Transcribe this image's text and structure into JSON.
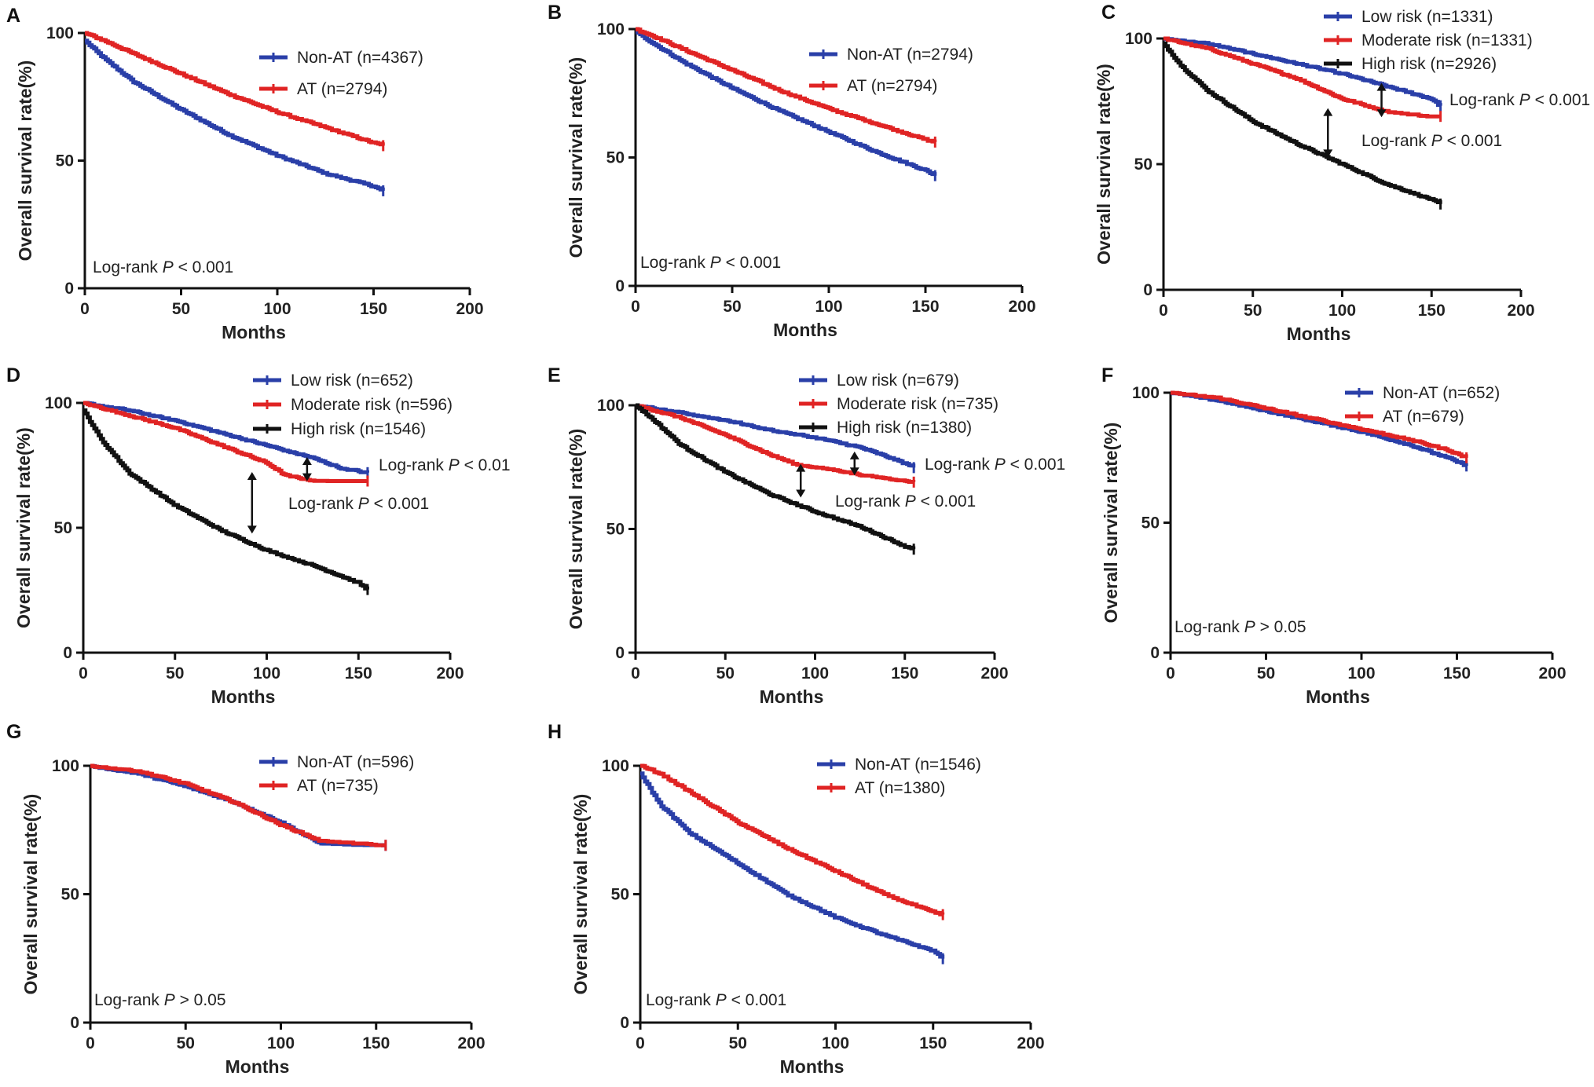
{
  "chart_data": [
    {
      "label": "A",
      "type": "line",
      "xlabel": "Months",
      "ylabel": "Overall survival rate(%)",
      "xlim": [
        0,
        200
      ],
      "ylim": [
        0,
        100
      ],
      "xticks": [
        0,
        50,
        100,
        150,
        200
      ],
      "yticks": [
        0,
        50,
        100
      ],
      "series": [
        {
          "name": "Non-AT (n=4367)",
          "color": "#2a3fa8",
          "x": [
            0,
            10,
            25,
            50,
            75,
            100,
            125,
            150,
            155
          ],
          "y": [
            97,
            90,
            81,
            70,
            60,
            52,
            45,
            40,
            38
          ]
        },
        {
          "name": "AT (n=2794)",
          "color": "#e02424",
          "x": [
            0,
            10,
            25,
            50,
            75,
            100,
            125,
            150,
            155
          ],
          "y": [
            100,
            97,
            92,
            84,
            76,
            69,
            63,
            57,
            56
          ]
        }
      ],
      "annotations": [
        {
          "text": "Log-rank ",
          "p": "P",
          "rest": " < 0.001"
        }
      ]
    },
    {
      "label": "B",
      "type": "line",
      "xlabel": "Months",
      "ylabel": "Overall survival rate(%)",
      "xlim": [
        0,
        200
      ],
      "ylim": [
        0,
        100
      ],
      "xticks": [
        0,
        50,
        100,
        150,
        200
      ],
      "yticks": [
        0,
        50,
        100
      ],
      "series": [
        {
          "name": "Non-AT (n=2794)",
          "color": "#2a3fa8",
          "x": [
            0,
            10,
            25,
            50,
            75,
            100,
            125,
            150,
            155
          ],
          "y": [
            99,
            94,
            87,
            77,
            68,
            60,
            52,
            45,
            43
          ]
        },
        {
          "name": "AT (n=2794)",
          "color": "#e02424",
          "x": [
            0,
            10,
            25,
            50,
            75,
            100,
            125,
            150,
            155
          ],
          "y": [
            100,
            97,
            92,
            84,
            76,
            69,
            63,
            57,
            56
          ]
        }
      ],
      "annotations": [
        {
          "text": "Log-rank ",
          "p": "P",
          "rest": " < 0.001"
        }
      ]
    },
    {
      "label": "C",
      "type": "line",
      "xlabel": "Months",
      "ylabel": "Overall survival rate(%)",
      "xlim": [
        0,
        200
      ],
      "ylim": [
        0,
        100
      ],
      "xticks": [
        0,
        50,
        100,
        150,
        200
      ],
      "yticks": [
        0,
        50,
        100
      ],
      "series": [
        {
          "name": "Low risk (n=1331)",
          "color": "#2a3fa8",
          "x": [
            0,
            25,
            50,
            75,
            100,
            125,
            150,
            155
          ],
          "y": [
            100,
            98,
            94,
            90,
            86,
            81,
            76,
            73
          ]
        },
        {
          "name": "Moderate risk (n=1331)",
          "color": "#e02424",
          "x": [
            0,
            25,
            50,
            75,
            100,
            125,
            150,
            155
          ],
          "y": [
            100,
            96,
            90,
            84,
            76,
            71,
            69,
            69
          ]
        },
        {
          "name": "High risk (n=2926)",
          "color": "#111111",
          "x": [
            0,
            10,
            25,
            50,
            75,
            100,
            125,
            150,
            155
          ],
          "y": [
            98,
            89,
            79,
            67,
            58,
            50,
            42,
            36,
            34
          ]
        }
      ],
      "annotations": [
        {
          "text": "Log-rank ",
          "p": "P",
          "rest": " < 0.001",
          "arrow_x": 122,
          "arrow_y": [
            69,
            82
          ]
        },
        {
          "text": "Log-rank ",
          "p": "P",
          "rest": " < 0.001",
          "arrow_x": 92,
          "arrow_y": [
            53,
            72
          ]
        }
      ]
    },
    {
      "label": "D",
      "type": "line",
      "xlabel": "Months",
      "ylabel": "Overall survival rate(%)",
      "xlim": [
        0,
        200
      ],
      "ylim": [
        0,
        100
      ],
      "xticks": [
        0,
        50,
        100,
        150,
        200
      ],
      "yticks": [
        0,
        50,
        100
      ],
      "series": [
        {
          "name": "Low risk (n=652)",
          "color": "#2a3fa8",
          "x": [
            0,
            25,
            50,
            75,
            100,
            125,
            140,
            155
          ],
          "y": [
            100,
            97,
            93,
            88,
            83,
            78,
            74,
            72
          ]
        },
        {
          "name": "Moderate risk (n=596)",
          "color": "#e02424",
          "x": [
            0,
            25,
            50,
            75,
            100,
            110,
            125,
            155
          ],
          "y": [
            100,
            95,
            90,
            83,
            76,
            71,
            69,
            69
          ]
        },
        {
          "name": "High risk (n=1546)",
          "color": "#111111",
          "x": [
            0,
            10,
            25,
            50,
            75,
            100,
            125,
            150,
            155
          ],
          "y": [
            97,
            85,
            72,
            59,
            49,
            41,
            35,
            28,
            25
          ]
        }
      ],
      "annotations": [
        {
          "text": "Log-rank ",
          "p": "P",
          "rest": " < 0.01",
          "arrow_x": 122,
          "arrow_y": [
            69,
            78
          ]
        },
        {
          "text": "Log-rank ",
          "p": "P",
          "rest": " < 0.001",
          "arrow_x": 92,
          "arrow_y": [
            48,
            72
          ]
        }
      ]
    },
    {
      "label": "E",
      "type": "line",
      "xlabel": "Months",
      "ylabel": "Overall survival rate(%)",
      "xlim": [
        0,
        200
      ],
      "ylim": [
        0,
        100
      ],
      "xticks": [
        0,
        50,
        100,
        150,
        200
      ],
      "yticks": [
        0,
        50,
        100
      ],
      "series": [
        {
          "name": "Low risk (n=679)",
          "color": "#2a3fa8",
          "x": [
            0,
            25,
            50,
            75,
            100,
            125,
            145,
            155
          ],
          "y": [
            100,
            97,
            94,
            90,
            87,
            83,
            78,
            75
          ]
        },
        {
          "name": "Moderate risk (n=735)",
          "color": "#e02424",
          "x": [
            0,
            25,
            50,
            75,
            90,
            110,
            125,
            155
          ],
          "y": [
            100,
            95,
            88,
            80,
            76,
            74,
            72,
            69
          ]
        },
        {
          "name": "High risk (n=1380)",
          "color": "#111111",
          "x": [
            0,
            10,
            25,
            50,
            75,
            100,
            125,
            150,
            155
          ],
          "y": [
            100,
            94,
            84,
            73,
            64,
            57,
            51,
            43,
            42
          ]
        }
      ],
      "annotations": [
        {
          "text": "Log-rank ",
          "p": "P",
          "rest": " < 0.001",
          "arrow_x": 122,
          "arrow_y": [
            72,
            81
          ]
        },
        {
          "text": "Log-rank ",
          "p": "P",
          "rest": " < 0.001",
          "arrow_x": 92,
          "arrow_y": [
            63,
            76
          ]
        }
      ]
    },
    {
      "label": "F",
      "type": "line",
      "xlabel": "Months",
      "ylabel": "Overall survival rate(%)",
      "xlim": [
        0,
        200
      ],
      "ylim": [
        0,
        100
      ],
      "xticks": [
        0,
        50,
        100,
        150,
        200
      ],
      "yticks": [
        0,
        50,
        100
      ],
      "series": [
        {
          "name": "Non-AT (n=652)",
          "color": "#2a3fa8",
          "x": [
            0,
            25,
            50,
            75,
            100,
            125,
            145,
            155
          ],
          "y": [
            100,
            97,
            93,
            89,
            85,
            80,
            75,
            72
          ]
        },
        {
          "name": "AT (n=679)",
          "color": "#e02424",
          "x": [
            0,
            25,
            50,
            75,
            100,
            125,
            145,
            155
          ],
          "y": [
            100,
            98,
            94,
            90,
            86,
            82,
            78,
            75
          ]
        }
      ],
      "annotations": [
        {
          "text": "Log-rank ",
          "p": "P",
          "rest": " > 0.05"
        }
      ]
    },
    {
      "label": "G",
      "type": "line",
      "xlabel": "Months",
      "ylabel": "Overall survival rate(%)",
      "xlim": [
        0,
        200
      ],
      "ylim": [
        0,
        100
      ],
      "xticks": [
        0,
        50,
        100,
        150,
        200
      ],
      "yticks": [
        0,
        50,
        100
      ],
      "series": [
        {
          "name": "Non-AT (n=596)",
          "color": "#2a3fa8",
          "x": [
            0,
            25,
            50,
            75,
            100,
            120,
            155
          ],
          "y": [
            100,
            97,
            92,
            86,
            78,
            70,
            69
          ]
        },
        {
          "name": "AT (n=735)",
          "color": "#e02424",
          "x": [
            0,
            25,
            50,
            75,
            100,
            120,
            155
          ],
          "y": [
            100,
            98,
            93,
            86,
            77,
            71,
            69
          ]
        }
      ],
      "annotations": [
        {
          "text": "Log-rank ",
          "p": "P",
          "rest": " > 0.05"
        }
      ]
    },
    {
      "label": "H",
      "type": "line",
      "xlabel": "Months",
      "ylabel": "Overall survival rate(%)",
      "xlim": [
        0,
        200
      ],
      "ylim": [
        0,
        100
      ],
      "xticks": [
        0,
        50,
        100,
        150,
        200
      ],
      "yticks": [
        0,
        50,
        100
      ],
      "series": [
        {
          "name": "Non-AT (n=1546)",
          "color": "#2a3fa8",
          "x": [
            0,
            10,
            25,
            50,
            75,
            100,
            125,
            150,
            155
          ],
          "y": [
            97,
            85,
            74,
            62,
            50,
            41,
            34,
            28,
            25
          ]
        },
        {
          "name": "AT (n=1380)",
          "color": "#e02424",
          "x": [
            0,
            10,
            25,
            50,
            75,
            100,
            125,
            150,
            155
          ],
          "y": [
            100,
            97,
            90,
            78,
            68,
            59,
            50,
            43,
            42
          ]
        }
      ],
      "annotations": [
        {
          "text": "Log-rank ",
          "p": "P",
          "rest": " < 0.001"
        }
      ]
    }
  ]
}
